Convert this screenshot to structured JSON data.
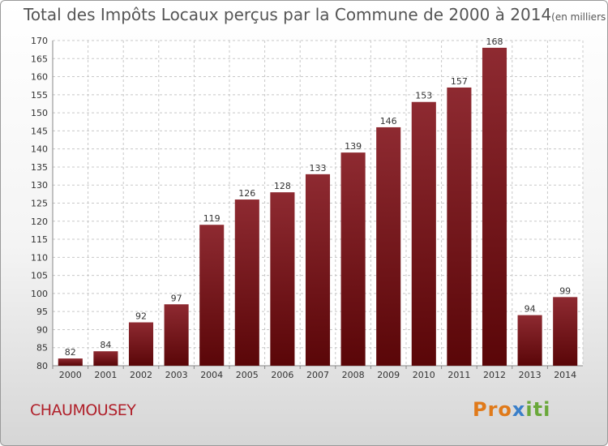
{
  "chart_data": {
    "type": "bar",
    "title": "Total des Impôts Locaux perçus par la Commune de 2000 à 2014",
    "unit": "(en milliers d'€)",
    "categories": [
      "2000",
      "2001",
      "2002",
      "2003",
      "2004",
      "2005",
      "2006",
      "2007",
      "2008",
      "2009",
      "2010",
      "2011",
      "2012",
      "2013",
      "2014"
    ],
    "values": [
      82,
      84,
      92,
      97,
      119,
      126,
      128,
      133,
      139,
      146,
      153,
      157,
      168,
      94,
      99
    ],
    "ylim": [
      80,
      170
    ],
    "yticks": [
      80,
      85,
      90,
      95,
      100,
      105,
      110,
      115,
      120,
      125,
      130,
      135,
      140,
      145,
      150,
      155,
      160,
      165,
      170
    ],
    "grid": true,
    "bar_color": "#7b1a22"
  },
  "commune": "CHAUMOUSEY",
  "logo": {
    "part1": "Pro",
    "part2": "x",
    "part3": "iti"
  }
}
